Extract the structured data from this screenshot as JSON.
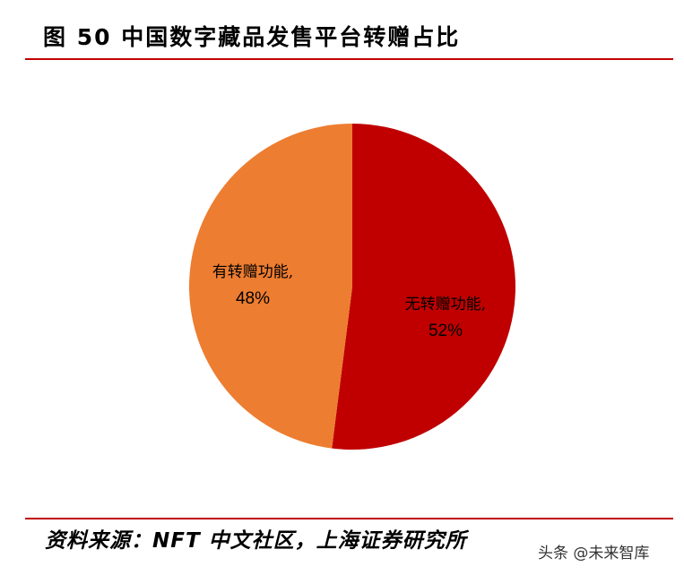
{
  "title": "图 50 中国数字藏品发售平台转赠占比",
  "colors": {
    "rule": "#c00000"
  },
  "chart_data": {
    "type": "pie",
    "slices": [
      {
        "label": "无转赠功能,",
        "value": 52,
        "value_label": "52%",
        "color": "#c00000"
      },
      {
        "label": "有转赠功能,",
        "value": 48,
        "value_label": "48%",
        "color": "#ed7d31"
      }
    ]
  },
  "source": "资料来源：NFT 中文社区，上海证券研究所",
  "watermark": "头条 @未来智库"
}
